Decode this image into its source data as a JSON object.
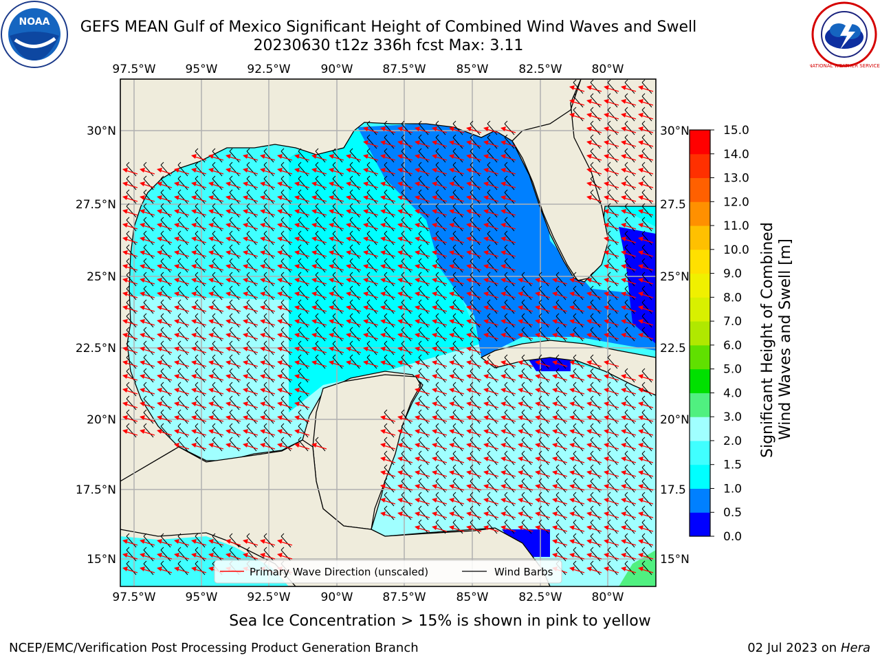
{
  "header": {
    "title_line1": "GEFS MEAN Gulf of Mexico Significant Height of Combined Wind Waves and Swell",
    "title_line2": "20230630 t12z 336h fcst   Max: 3.11"
  },
  "logos": {
    "noaa_text": "NOAA",
    "nws_text": "NATIONAL WEATHER SERVICE"
  },
  "map": {
    "lon_labels": [
      "97.5°W",
      "95°W",
      "92.5°W",
      "90°W",
      "87.5°W",
      "85°W",
      "82.5°W",
      "80°W"
    ],
    "lat_labels": [
      "30°N",
      "27.5°N",
      "25°N",
      "22.5°N",
      "20°N",
      "17.5°N",
      "15°N"
    ],
    "lat_labels_right": [
      "30°N",
      "27.5",
      "25°N",
      "22.5",
      "20°N",
      "17.5",
      "15°N"
    ],
    "legend": {
      "wave_direction": "Primary Wave Direction (unscaled)",
      "wind_barbs": "Wind Barbs"
    },
    "colors": {
      "land": "#efecdc",
      "grid": "#b0b0b0",
      "arrow": "#ff0000"
    }
  },
  "colorbar": {
    "label_line1": "Significant Height of Combined",
    "label_line2": "Wind Waves and Swell [m]",
    "ticks": [
      "0.0",
      "0.5",
      "1.0",
      "1.5",
      "2.0",
      "3.0",
      "4.0",
      "5.0",
      "6.0",
      "7.0",
      "8.0",
      "9.0",
      "10.0",
      "11.0",
      "12.0",
      "13.0",
      "14.0",
      "15.0"
    ],
    "colors": [
      "#0000ff",
      "#0080ff",
      "#00ffff",
      "#40ffff",
      "#a0ffff",
      "#50f080",
      "#00e000",
      "#60e000",
      "#b0e800",
      "#d8f000",
      "#f0f000",
      "#ffe000",
      "#ffc000",
      "#ff9000",
      "#ff6000",
      "#ff3000",
      "#ff0000"
    ]
  },
  "footer": {
    "note": "Sea Ice Concentration > 15% is shown in pink to yellow",
    "credit_left": "NCEP/EMC/Verification Post Processing Product Generation Branch",
    "date": "02 Jul 2023 on ",
    "host": "Hera"
  }
}
